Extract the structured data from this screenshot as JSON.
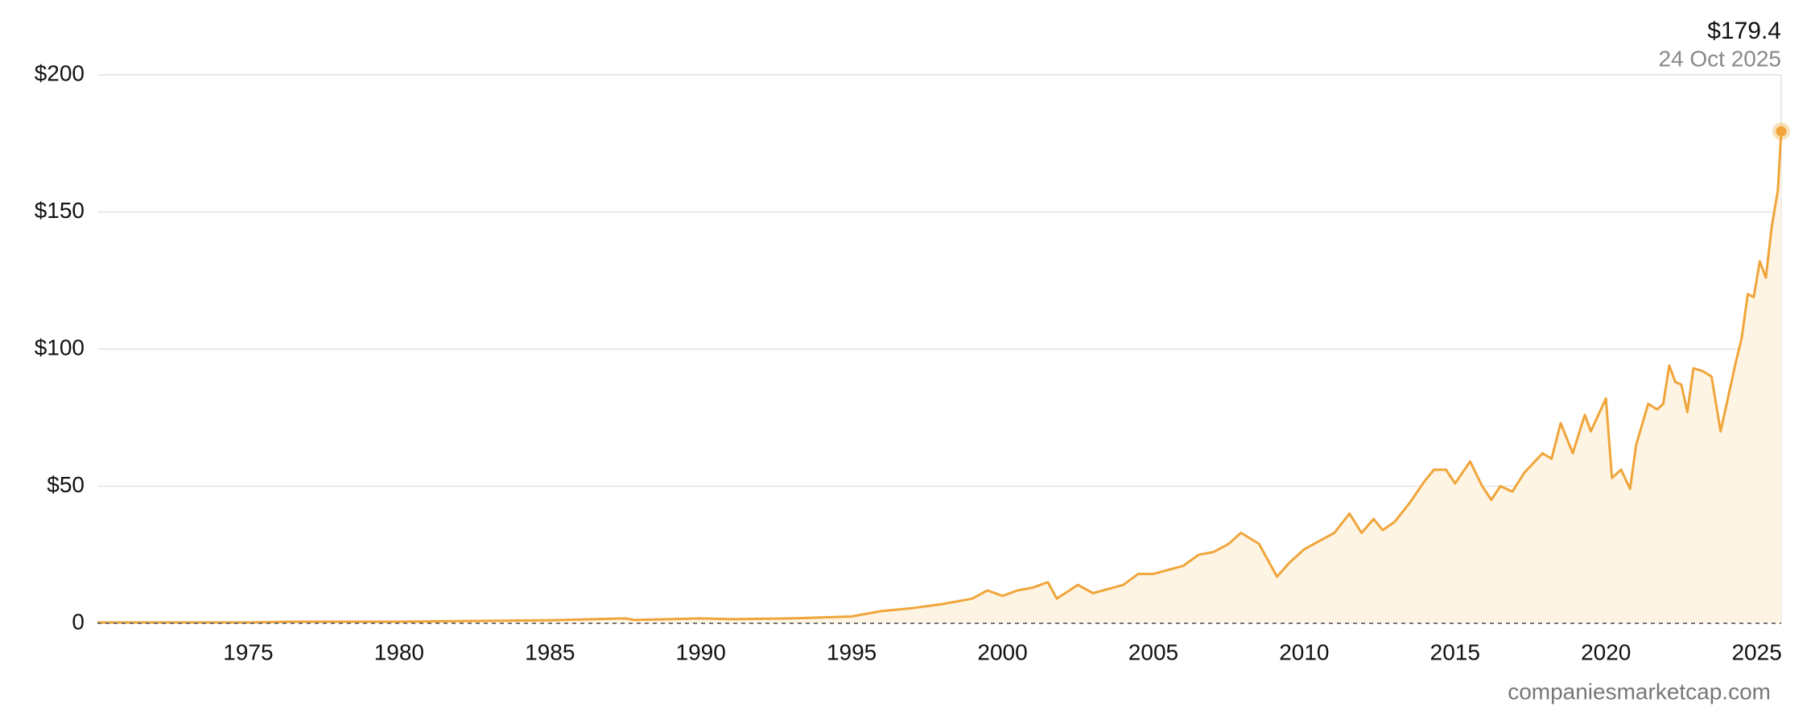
{
  "chart_data": {
    "type": "area",
    "annotation": {
      "value": 179.4,
      "label": "$179.4",
      "date": "24 Oct 2025"
    },
    "source": "companiesmarketcap.com",
    "x": [
      1970,
      1975,
      1976.5,
      1980,
      1983,
      1985,
      1987.5,
      1987.8,
      1990,
      1991,
      1993,
      1995,
      1996,
      1997,
      1998,
      1999,
      1999.5,
      2000,
      2000.5,
      2001,
      2001.5,
      2001.8,
      2002.5,
      2003,
      2004,
      2004.5,
      2005,
      2006,
      2006.5,
      2007,
      2007.5,
      2007.9,
      2008.5,
      2009.1,
      2009.5,
      2010,
      2010.5,
      2011,
      2011.5,
      2011.9,
      2012.3,
      2012.6,
      2013,
      2013.5,
      2014,
      2014.3,
      2014.7,
      2015,
      2015.5,
      2015.9,
      2016.2,
      2016.5,
      2016.9,
      2017.3,
      2017.9,
      2018.2,
      2018.5,
      2018.9,
      2019.3,
      2019.5,
      2020,
      2020.2,
      2020.5,
      2020.8,
      2021,
      2021.4,
      2021.7,
      2021.9,
      2022.1,
      2022.3,
      2022.5,
      2022.7,
      2022.9,
      2023.2,
      2023.5,
      2023.8,
      2024,
      2024.3,
      2024.5,
      2024.7,
      2024.9,
      2025.1,
      2025.3,
      2025.5,
      2025.7,
      2025.81
    ],
    "series": [
      {
        "color": "#f0a53a",
        "values": [
          0.3,
          0.3,
          0.6,
          0.6,
          0.9,
          1.1,
          1.8,
          1.2,
          1.8,
          1.5,
          1.8,
          2.5,
          4.5,
          5.5,
          7,
          9,
          12,
          10,
          12,
          13,
          15,
          9,
          14,
          11,
          14,
          18,
          18,
          21,
          25,
          26,
          29,
          33,
          29,
          17,
          22,
          27,
          30,
          33,
          40,
          33,
          38,
          34,
          37,
          44,
          52,
          56,
          56,
          51,
          59,
          50,
          45,
          50,
          48,
          55,
          62,
          60,
          73,
          62,
          76,
          70,
          82,
          53,
          56,
          49,
          65,
          80,
          78,
          80,
          94,
          88,
          87,
          77,
          93,
          92,
          90,
          70,
          80,
          95,
          104,
          120,
          119,
          132,
          126,
          145,
          158,
          179.4
        ]
      }
    ],
    "xlim": [
      1970,
      2025.81
    ],
    "ylim": [
      0,
      200
    ],
    "xticks": [
      1975,
      1980,
      1985,
      1990,
      1995,
      2000,
      2005,
      2010,
      2015,
      2020,
      2025
    ],
    "yticks": [
      0,
      {
        "value": 50,
        "label": "$50"
      },
      {
        "value": 100,
        "label": "$100"
      },
      {
        "value": 150,
        "label": "$150"
      },
      {
        "value": 200,
        "label": "$200"
      }
    ],
    "grid": true
  }
}
